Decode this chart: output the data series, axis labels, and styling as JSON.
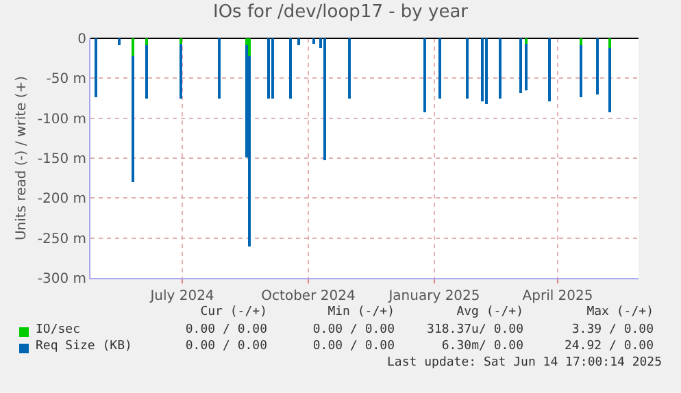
{
  "chart_data": {
    "type": "bar",
    "title": "IOs for /dev/loop17 - by year",
    "ylabel": "Units read (-) / write (+)",
    "xlim": [
      "2024-04-25",
      "2025-05-30"
    ],
    "xticks": [
      {
        "value": "2024-07-01",
        "label": "July 2024"
      },
      {
        "value": "2024-10-01",
        "label": "October 2024"
      },
      {
        "value": "2025-01-01",
        "label": "January 2025"
      },
      {
        "value": "2025-04-01",
        "label": "April 2025"
      }
    ],
    "ylim": [
      -300,
      0
    ],
    "yticks": [
      {
        "value": -300,
        "label": "-300 m"
      },
      {
        "value": -250,
        "label": "-250 m"
      },
      {
        "value": -200,
        "label": "-200 m"
      },
      {
        "value": -150,
        "label": "-150 m"
      },
      {
        "value": -100,
        "label": "-100 m"
      },
      {
        "value": -50,
        "label": "-50 m"
      },
      0
    ],
    "grid": true,
    "legend": "bottom",
    "series": [
      {
        "name": "Req Size (KB)",
        "color": "#0066b3",
        "x": [
          "2024-04-29",
          "2024-05-16",
          "2024-05-26",
          "2024-06-05",
          "2024-06-30",
          "2024-07-28",
          "2024-08-17",
          "2024-08-19",
          "2024-09-02",
          "2024-09-05",
          "2024-09-18",
          "2024-09-24",
          "2024-10-05",
          "2024-10-10",
          "2024-10-13",
          "2024-10-31",
          "2024-12-25",
          "2025-01-05",
          "2025-01-25",
          "2025-02-05",
          "2025-02-08",
          "2025-02-18",
          "2025-03-05",
          "2025-03-09",
          "2025-03-26",
          "2025-04-18",
          "2025-04-30",
          "2025-05-09"
        ],
        "values": [
          -73,
          -8,
          -180,
          -75,
          -75,
          -76,
          -149,
          -260,
          -75,
          -76,
          -76,
          -8,
          -7,
          -12,
          -152,
          -76,
          -92,
          -76,
          -75,
          -79,
          -83,
          -75,
          -68,
          -65,
          -78,
          -73,
          -70,
          -92
        ]
      },
      {
        "name": "IO/sec",
        "color": "#00cc00",
        "x": [
          "2024-05-26",
          "2024-06-05",
          "2024-06-30",
          "2024-08-17",
          "2024-08-19",
          "2025-03-09",
          "2025-04-18",
          "2025-05-09"
        ],
        "values": [
          -22,
          -9,
          -6,
          -9,
          -23,
          -7,
          -9,
          -12
        ]
      }
    ],
    "annotations": [
      "Cur (-/+)",
      "Min (-/+)",
      "Avg (-/+)",
      "Max (-/+)",
      "0.00 / 0.00",
      "0.00 / 0.00",
      "318.37u/ 0.00",
      "3.39 / 0.00",
      "0.00 / 0.00",
      "0.00 / 0.00",
      "6.30m/ 0.00",
      "24.92 / 0.00",
      "Last update: Sat Jun 14 17:00:14 2025"
    ]
  }
}
